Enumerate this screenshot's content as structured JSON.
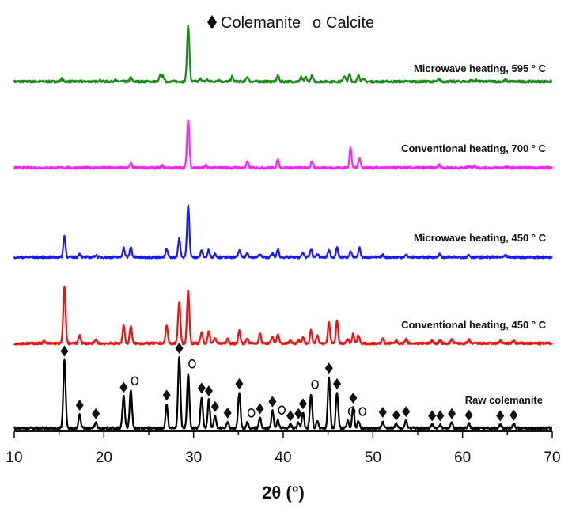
{
  "chart_data": {
    "type": "line",
    "title": "",
    "xlabel": "2θ (°)",
    "ylabel": "",
    "xlim": [
      10,
      70
    ],
    "xticks": [
      10,
      20,
      30,
      40,
      50,
      60,
      70
    ],
    "y_axis_shown": false,
    "grid": false,
    "legend": {
      "placement": "top-center",
      "entries": [
        {
          "symbol": "diamond",
          "label": "Colemanite"
        },
        {
          "symbol": "o",
          "label": "Calcite"
        }
      ]
    },
    "series": [
      {
        "name": "Microwave heating, 595 ° C",
        "color": "#1a8a1a",
        "peaks": [
          [
            15.3,
            4
          ],
          [
            19.5,
            2
          ],
          [
            21.2,
            2
          ],
          [
            23.0,
            6
          ],
          [
            26.3,
            9
          ],
          [
            26.6,
            7
          ],
          [
            29.4,
            80
          ],
          [
            30.8,
            4
          ],
          [
            31.5,
            3
          ],
          [
            32.8,
            3
          ],
          [
            34.3,
            7
          ],
          [
            36.0,
            7
          ],
          [
            39.4,
            9
          ],
          [
            42.0,
            6
          ],
          [
            42.5,
            6
          ],
          [
            43.2,
            8
          ],
          [
            46.8,
            8
          ],
          [
            47.4,
            10
          ],
          [
            48.4,
            8
          ],
          [
            48.9,
            5
          ],
          [
            57.4,
            3
          ],
          [
            61.0,
            2
          ],
          [
            61.6,
            2
          ],
          [
            64.8,
            2
          ]
        ]
      },
      {
        "name": "Conventional heating, 700 ° C",
        "color": "#ff22ff",
        "peaks": [
          [
            23.0,
            6
          ],
          [
            26.5,
            3
          ],
          [
            29.4,
            68
          ],
          [
            31.4,
            3
          ],
          [
            36.0,
            8
          ],
          [
            39.4,
            11
          ],
          [
            43.2,
            8
          ],
          [
            47.5,
            28
          ],
          [
            48.5,
            14
          ],
          [
            57.4,
            4
          ],
          [
            60.7,
            3
          ],
          [
            61.3,
            3
          ],
          [
            64.8,
            2
          ]
        ]
      },
      {
        "name": "Microwave heating, 450 ° C",
        "color": "#1a1aff",
        "peaks": [
          [
            15.6,
            30
          ],
          [
            17.3,
            5
          ],
          [
            19.1,
            3
          ],
          [
            22.2,
            13
          ],
          [
            23.0,
            14
          ],
          [
            27.0,
            11
          ],
          [
            28.4,
            27
          ],
          [
            29.4,
            72
          ],
          [
            30.9,
            9
          ],
          [
            31.7,
            10
          ],
          [
            32.4,
            5
          ],
          [
            35.1,
            9
          ],
          [
            36.0,
            6
          ],
          [
            37.4,
            4
          ],
          [
            38.8,
            5
          ],
          [
            39.4,
            11
          ],
          [
            42.2,
            6
          ],
          [
            43.1,
            11
          ],
          [
            43.8,
            4
          ],
          [
            45.1,
            10
          ],
          [
            46.0,
            13
          ],
          [
            47.5,
            8
          ],
          [
            48.5,
            13
          ],
          [
            51.1,
            3
          ],
          [
            53.7,
            3
          ],
          [
            57.4,
            4
          ],
          [
            60.7,
            3
          ],
          [
            64.8,
            2
          ]
        ]
      },
      {
        "name": "Conventional heating, 450 ° C",
        "color": "#ee1111",
        "peaks": [
          [
            13.3,
            3
          ],
          [
            15.6,
            80
          ],
          [
            17.3,
            12
          ],
          [
            19.1,
            5
          ],
          [
            22.2,
            26
          ],
          [
            23.0,
            25
          ],
          [
            27.0,
            26
          ],
          [
            28.4,
            60
          ],
          [
            29.4,
            75
          ],
          [
            30.9,
            16
          ],
          [
            31.7,
            18
          ],
          [
            32.4,
            8
          ],
          [
            33.8,
            6
          ],
          [
            35.1,
            18
          ],
          [
            36.0,
            7
          ],
          [
            37.4,
            14
          ],
          [
            38.8,
            10
          ],
          [
            39.4,
            13
          ],
          [
            40.8,
            4
          ],
          [
            41.7,
            5
          ],
          [
            42.2,
            9
          ],
          [
            43.1,
            18
          ],
          [
            43.8,
            12
          ],
          [
            45.1,
            30
          ],
          [
            46.0,
            32
          ],
          [
            47.2,
            6
          ],
          [
            47.8,
            13
          ],
          [
            48.4,
            12
          ],
          [
            51.1,
            7
          ],
          [
            52.6,
            4
          ],
          [
            53.7,
            6
          ],
          [
            56.6,
            4
          ],
          [
            57.5,
            4
          ],
          [
            58.8,
            6
          ],
          [
            60.7,
            5
          ],
          [
            64.2,
            4
          ],
          [
            65.7,
            4
          ]
        ]
      },
      {
        "name": "Raw colemanite",
        "color": "#000000",
        "peaks": [
          [
            15.6,
            96
          ],
          [
            17.3,
            20
          ],
          [
            19.1,
            8
          ],
          [
            22.2,
            45
          ],
          [
            23.0,
            53
          ],
          [
            27.0,
            34
          ],
          [
            28.4,
            100
          ],
          [
            29.4,
            77
          ],
          [
            30.9,
            44
          ],
          [
            31.7,
            40
          ],
          [
            32.4,
            18
          ],
          [
            33.8,
            9
          ],
          [
            35.1,
            50
          ],
          [
            36.0,
            8
          ],
          [
            37.4,
            15
          ],
          [
            38.8,
            25
          ],
          [
            39.4,
            12
          ],
          [
            40.8,
            5
          ],
          [
            41.7,
            8
          ],
          [
            42.2,
            22
          ],
          [
            43.1,
            48
          ],
          [
            43.8,
            10
          ],
          [
            45.1,
            72
          ],
          [
            46.0,
            50
          ],
          [
            47.2,
            10
          ],
          [
            47.8,
            30
          ],
          [
            48.4,
            10
          ],
          [
            51.1,
            10
          ],
          [
            52.6,
            6
          ],
          [
            53.7,
            11
          ],
          [
            56.6,
            5
          ],
          [
            57.5,
            5
          ],
          [
            58.8,
            8
          ],
          [
            60.7,
            6
          ],
          [
            64.2,
            5
          ],
          [
            65.7,
            6
          ]
        ],
        "markers": {
          "colemanite": [
            15.6,
            17.3,
            19.1,
            22.2,
            27.0,
            28.4,
            30.9,
            31.7,
            32.4,
            33.8,
            35.1,
            37.4,
            38.8,
            40.8,
            41.7,
            42.2,
            45.1,
            46.0,
            47.8,
            51.1,
            52.6,
            53.7,
            56.6,
            57.5,
            58.8,
            60.7,
            64.2,
            65.7
          ],
          "calcite": [
            23.0,
            29.4,
            36.0,
            39.4,
            43.1,
            47.2,
            48.4
          ]
        }
      }
    ]
  }
}
